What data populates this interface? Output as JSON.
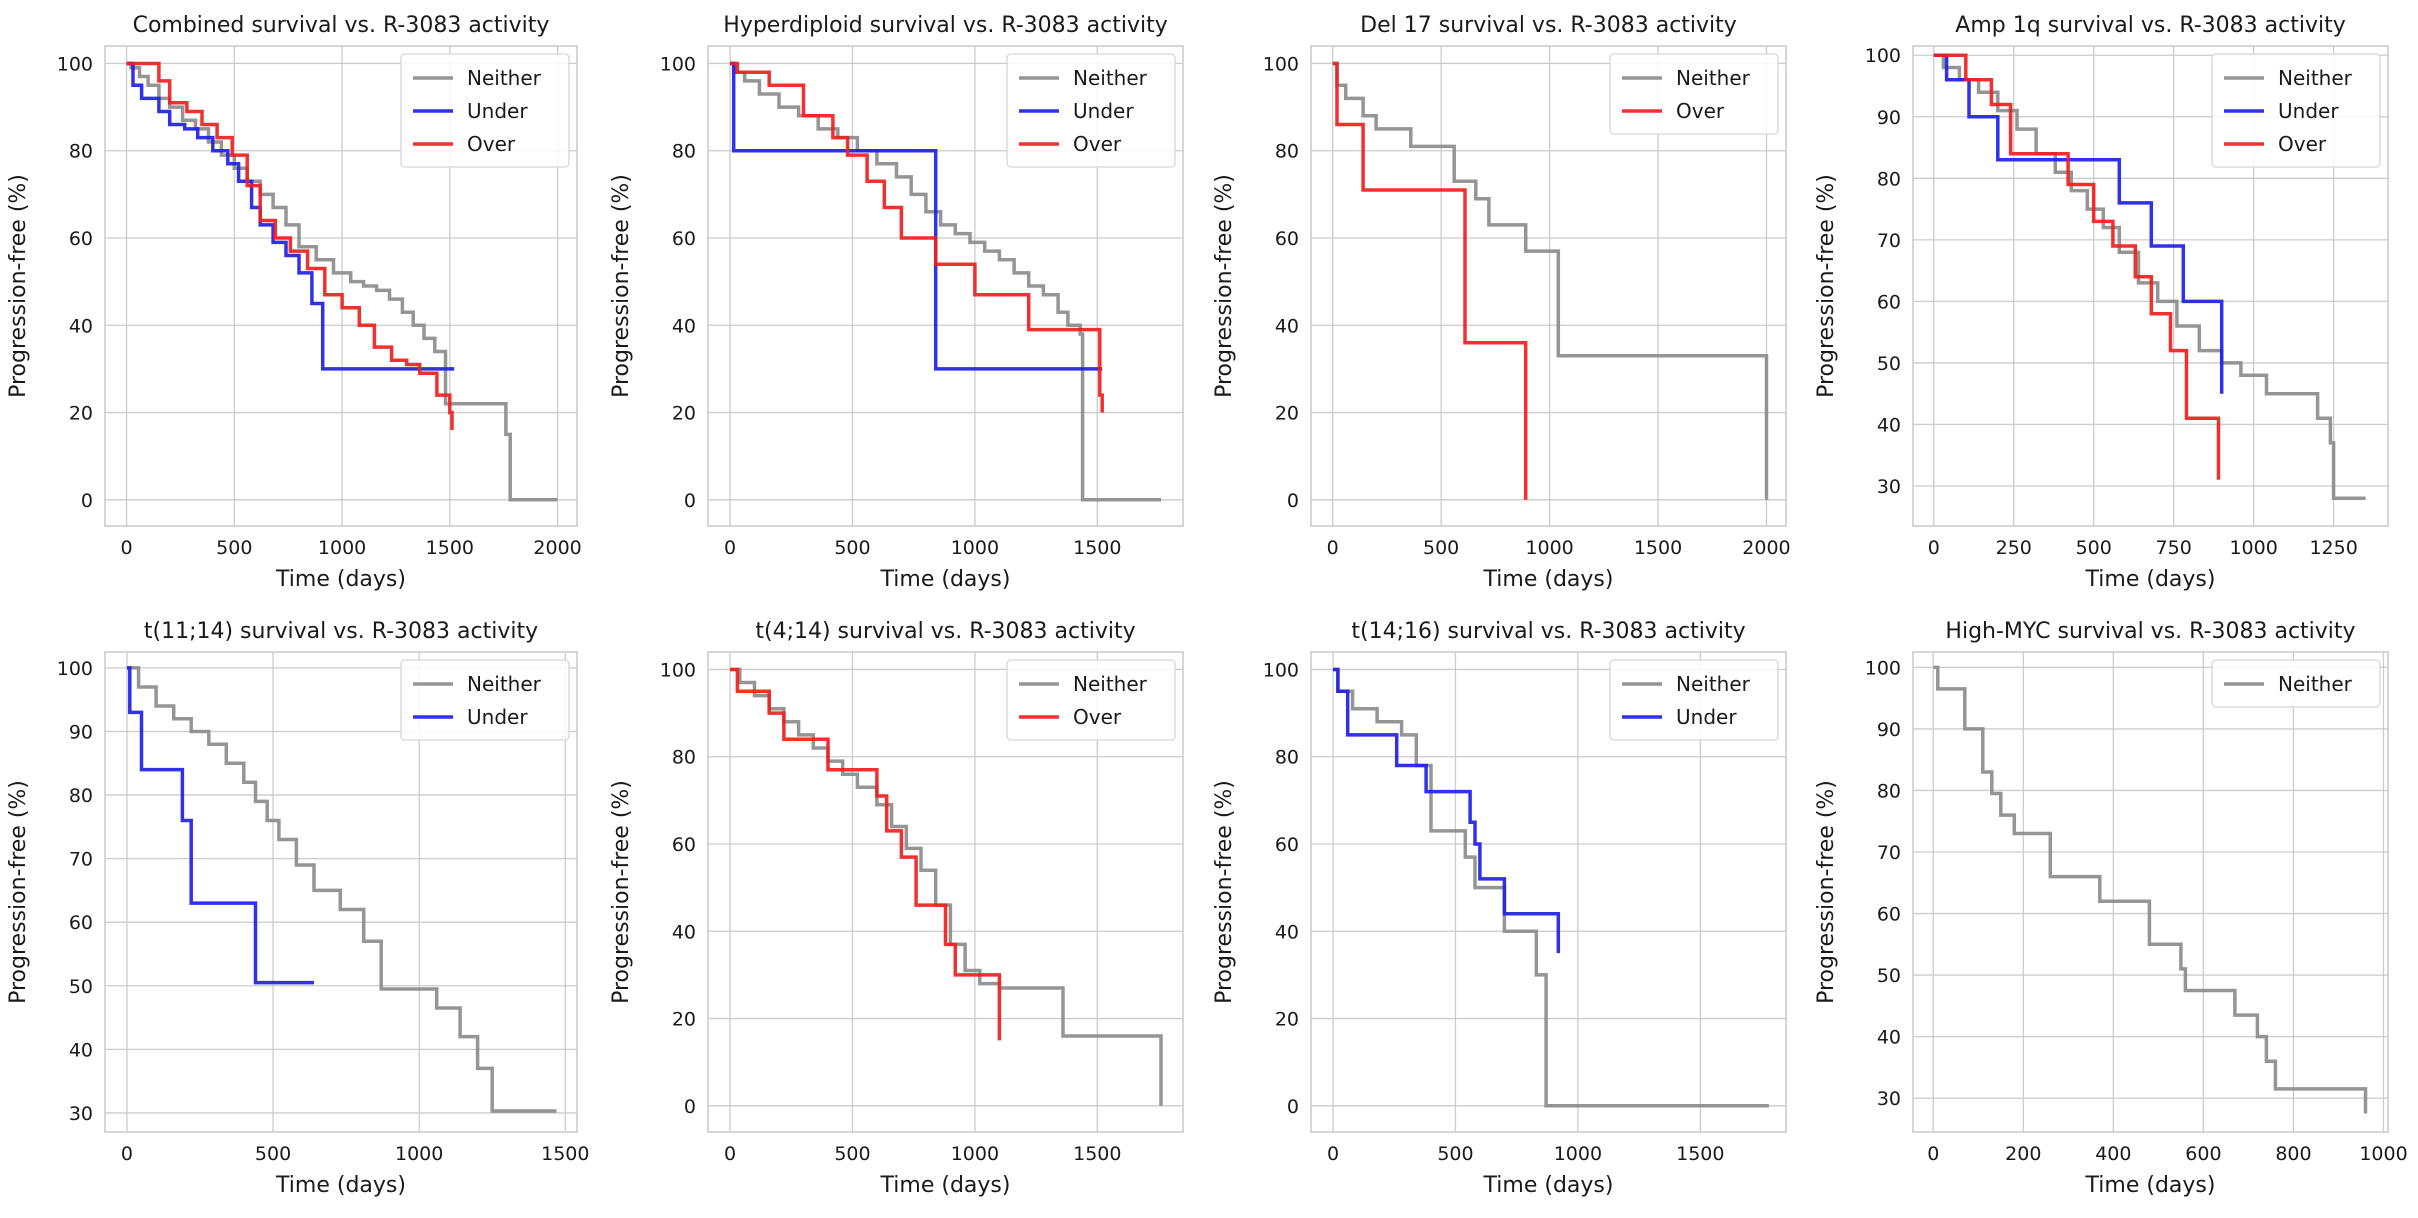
{
  "chart_data": [
    {
      "type": "line",
      "title": "Combined survival vs. R-3083 activity",
      "xlabel": "Time (days)",
      "ylabel": "Progression-free (%)",
      "xlim": [
        -100,
        2090
      ],
      "ylim": [
        -6,
        104
      ],
      "xticks": [
        0,
        500,
        1000,
        1500,
        2000
      ],
      "yticks": [
        0,
        20,
        40,
        60,
        80,
        100
      ],
      "grid": true,
      "legend": "top-right",
      "series": [
        {
          "name": "Neither",
          "color": "#8c8c8c",
          "x": [
            0,
            20,
            60,
            100,
            150,
            200,
            260,
            320,
            380,
            440,
            500,
            560,
            620,
            680,
            740,
            800,
            880,
            960,
            1040,
            1100,
            1160,
            1220,
            1280,
            1330,
            1380,
            1430,
            1480,
            1540,
            1600,
            1680,
            1760,
            1780,
            2000
          ],
          "y": [
            100,
            99,
            97,
            95,
            92,
            90,
            87,
            85,
            82,
            79,
            76,
            73,
            70,
            67,
            63,
            58,
            55,
            52,
            50,
            49,
            48,
            46,
            43,
            40,
            37,
            34,
            22,
            22,
            22,
            22,
            15,
            0,
            0
          ]
        },
        {
          "name": "Under",
          "color": "#1f1fe6",
          "x": [
            0,
            30,
            70,
            150,
            200,
            270,
            330,
            400,
            470,
            520,
            580,
            620,
            680,
            740,
            800,
            860,
            910,
            1520
          ],
          "y": [
            100,
            95,
            92,
            89,
            86,
            85,
            83,
            80,
            77,
            73,
            67,
            63,
            59,
            56,
            52,
            45,
            30,
            30
          ]
        },
        {
          "name": "Over",
          "color": "#f01e1e",
          "x": [
            0,
            150,
            200,
            280,
            350,
            420,
            490,
            560,
            620,
            690,
            760,
            840,
            920,
            1000,
            1080,
            1150,
            1230,
            1300,
            1360,
            1440,
            1500,
            1510
          ],
          "y": [
            100,
            96,
            91,
            89,
            86,
            83,
            79,
            72,
            64,
            60,
            57,
            53,
            47,
            44,
            40,
            35,
            32,
            31,
            29,
            24,
            20,
            16
          ]
        }
      ]
    },
    {
      "type": "line",
      "title": "Hyperdiploid survival vs. R-3083 activity",
      "xlabel": "Time (days)",
      "ylabel": "Progression-free (%)",
      "xlim": [
        -90,
        1850
      ],
      "ylim": [
        -6,
        104
      ],
      "xticks": [
        0,
        500,
        1000,
        1500
      ],
      "yticks": [
        0,
        20,
        40,
        60,
        80,
        100
      ],
      "grid": true,
      "legend": "top-right",
      "series": [
        {
          "name": "Neither",
          "color": "#8c8c8c",
          "x": [
            0,
            20,
            60,
            120,
            200,
            280,
            360,
            440,
            520,
            600,
            680,
            740,
            800,
            860,
            920,
            980,
            1040,
            1100,
            1160,
            1220,
            1280,
            1340,
            1380,
            1430,
            1440,
            1760
          ],
          "y": [
            100,
            98,
            96,
            93,
            90,
            88,
            85,
            83,
            80,
            77,
            74,
            70,
            66,
            63,
            61,
            59,
            57,
            55,
            52,
            49,
            47,
            43,
            40,
            38,
            0,
            0
          ]
        },
        {
          "name": "Under",
          "color": "#1f1fe6",
          "x": [
            0,
            15,
            700,
            840,
            1520
          ],
          "y": [
            100,
            80,
            80,
            30,
            30
          ]
        },
        {
          "name": "Over",
          "color": "#f01e1e",
          "x": [
            0,
            30,
            160,
            300,
            420,
            480,
            560,
            630,
            700,
            840,
            1000,
            1220,
            1420,
            1510,
            1520
          ],
          "y": [
            100,
            98,
            95,
            88,
            83,
            79,
            73,
            67,
            60,
            54,
            47,
            39,
            39,
            24,
            20
          ]
        }
      ]
    },
    {
      "type": "line",
      "title": "Del 17 survival vs. R-3083 activity",
      "xlabel": "Time (days)",
      "ylabel": "Progression-free (%)",
      "xlim": [
        -100,
        2090
      ],
      "ylim": [
        -6,
        104
      ],
      "xticks": [
        0,
        500,
        1000,
        1500,
        2000
      ],
      "yticks": [
        0,
        20,
        40,
        60,
        80,
        100
      ],
      "grid": true,
      "legend": "top-right",
      "series": [
        {
          "name": "Neither",
          "color": "#8c8c8c",
          "x": [
            0,
            20,
            60,
            140,
            200,
            360,
            560,
            660,
            720,
            890,
            1040,
            1250,
            2000
          ],
          "y": [
            100,
            95,
            92,
            88,
            85,
            81,
            73,
            69,
            63,
            57,
            33,
            33,
            0
          ]
        },
        {
          "name": "Over",
          "color": "#f01e1e",
          "x": [
            0,
            20,
            140,
            610,
            880,
            890
          ],
          "y": [
            100,
            86,
            71,
            36,
            36,
            0
          ]
        }
      ]
    },
    {
      "type": "line",
      "title": "Amp 1q survival vs. R-3083 activity",
      "xlabel": "Time (days)",
      "ylabel": "Progression-free (%)",
      "xlim": [
        -65,
        1420
      ],
      "ylim": [
        23.5,
        101.5
      ],
      "xticks": [
        0,
        250,
        500,
        750,
        1000,
        1250
      ],
      "yticks": [
        30,
        40,
        50,
        60,
        70,
        80,
        90,
        100
      ],
      "grid": true,
      "legend": "top-right",
      "series": [
        {
          "name": "Neither",
          "color": "#8c8c8c",
          "x": [
            0,
            30,
            80,
            140,
            200,
            260,
            320,
            380,
            430,
            480,
            530,
            580,
            640,
            700,
            760,
            830,
            900,
            960,
            1040,
            1120,
            1200,
            1240,
            1250,
            1350
          ],
          "y": [
            100,
            98,
            96,
            94,
            91,
            88,
            84,
            81,
            78,
            75,
            72,
            68,
            63,
            60,
            56,
            52,
            50,
            48,
            45,
            45,
            41,
            37,
            28,
            28
          ]
        },
        {
          "name": "Under",
          "color": "#1f1fe6",
          "x": [
            0,
            40,
            110,
            200,
            500,
            580,
            680,
            780,
            900
          ],
          "y": [
            100,
            96,
            90,
            83,
            83,
            76,
            69,
            60,
            45
          ]
        },
        {
          "name": "Over",
          "color": "#f01e1e",
          "x": [
            0,
            100,
            180,
            240,
            420,
            500,
            560,
            630,
            680,
            740,
            790,
            880,
            890
          ],
          "y": [
            100,
            96,
            92,
            84,
            79,
            73,
            69,
            64,
            58,
            52,
            41,
            41,
            31
          ]
        }
      ]
    },
    {
      "type": "line",
      "title": "t(11;14) survival vs. R-3083 activity",
      "xlabel": "Time (days)",
      "ylabel": "Progression-free (%)",
      "xlim": [
        -75,
        1540
      ],
      "ylim": [
        27,
        102.5
      ],
      "xticks": [
        0,
        500,
        1000,
        1500
      ],
      "yticks": [
        30,
        40,
        50,
        60,
        70,
        80,
        90,
        100
      ],
      "grid": true,
      "legend": "top-right",
      "series": [
        {
          "name": "Neither",
          "color": "#8c8c8c",
          "x": [
            0,
            40,
            100,
            160,
            220,
            280,
            340,
            400,
            440,
            480,
            520,
            580,
            640,
            730,
            810,
            870,
            1060,
            1140,
            1200,
            1250,
            1470
          ],
          "y": [
            100,
            97,
            94,
            92,
            90,
            88,
            85,
            82,
            79,
            76,
            73,
            69,
            65,
            62,
            57,
            49.5,
            46.5,
            42,
            37,
            30.3,
            30.3
          ]
        },
        {
          "name": "Under",
          "color": "#1f1fe6",
          "x": [
            0,
            10,
            50,
            190,
            220,
            440,
            640
          ],
          "y": [
            100,
            93,
            84,
            76,
            63,
            50.5,
            50.5
          ]
        }
      ]
    },
    {
      "type": "line",
      "title": "t(4;14) survival vs. R-3083 activity",
      "xlabel": "Time (days)",
      "ylabel": "Progression-free (%)",
      "xlim": [
        -90,
        1850
      ],
      "ylim": [
        -6,
        104
      ],
      "xticks": [
        0,
        500,
        1000,
        1500
      ],
      "yticks": [
        0,
        20,
        40,
        60,
        80,
        100
      ],
      "grid": true,
      "legend": "top-right",
      "series": [
        {
          "name": "Neither",
          "color": "#8c8c8c",
          "x": [
            0,
            40,
            100,
            160,
            220,
            280,
            340,
            400,
            460,
            520,
            600,
            660,
            720,
            780,
            840,
            900,
            960,
            1020,
            1100,
            1360,
            1760
          ],
          "y": [
            100,
            97,
            94,
            91,
            88,
            85,
            82,
            79,
            76,
            73,
            69,
            64,
            59,
            54,
            46,
            37,
            31,
            28,
            27,
            16,
            0
          ]
        },
        {
          "name": "Over",
          "color": "#f01e1e",
          "x": [
            0,
            30,
            160,
            220,
            400,
            600,
            640,
            700,
            760,
            880,
            920,
            1100
          ],
          "y": [
            100,
            95,
            90,
            84,
            77,
            71,
            63,
            57,
            46,
            37,
            30,
            15
          ]
        }
      ]
    },
    {
      "type": "line",
      "title": "t(14;16) survival vs. R-3083 activity",
      "xlabel": "Time (days)",
      "ylabel": "Progression-free (%)",
      "xlim": [
        -90,
        1850
      ],
      "ylim": [
        -6,
        104
      ],
      "xticks": [
        0,
        500,
        1000,
        1500
      ],
      "yticks": [
        0,
        20,
        40,
        60,
        80,
        100
      ],
      "grid": true,
      "legend": "top-right",
      "series": [
        {
          "name": "Neither",
          "color": "#8c8c8c",
          "x": [
            0,
            20,
            80,
            180,
            280,
            340,
            400,
            540,
            580,
            700,
            830,
            870,
            1780
          ],
          "y": [
            100,
            95,
            91,
            88,
            85,
            78,
            63,
            57,
            50,
            40,
            30,
            0,
            0
          ]
        },
        {
          "name": "Under",
          "color": "#1f1fe6",
          "x": [
            0,
            20,
            60,
            260,
            380,
            560,
            580,
            600,
            700,
            920
          ],
          "y": [
            100,
            95,
            85,
            78,
            72,
            65,
            60,
            52,
            44,
            35
          ]
        }
      ]
    },
    {
      "type": "line",
      "title": "High-MYC survival vs. R-3083 activity",
      "xlabel": "Time (days)",
      "ylabel": "Progression-free (%)",
      "xlim": [
        -45,
        1010
      ],
      "ylim": [
        24.5,
        102.5
      ],
      "xticks": [
        0,
        200,
        400,
        600,
        800,
        1000
      ],
      "yticks": [
        30,
        40,
        50,
        60,
        70,
        80,
        90,
        100
      ],
      "grid": true,
      "legend": "top-right",
      "series": [
        {
          "name": "Neither",
          "color": "#8c8c8c",
          "x": [
            0,
            10,
            70,
            110,
            130,
            150,
            180,
            260,
            370,
            480,
            550,
            560,
            670,
            720,
            740,
            760,
            960
          ],
          "y": [
            100,
            96.5,
            90,
            83,
            79.5,
            76,
            73,
            66,
            62,
            55,
            51,
            47.5,
            43.5,
            40,
            36,
            31.5,
            27.5
          ]
        }
      ]
    }
  ]
}
